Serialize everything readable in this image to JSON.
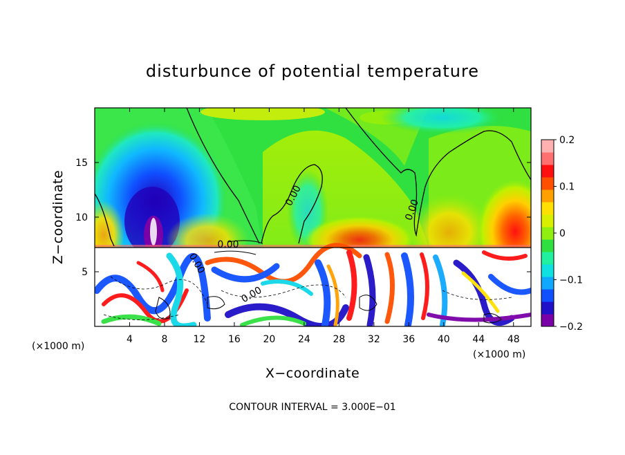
{
  "chart_data": {
    "type": "heatmap",
    "title": "disturbunce of potential temperature",
    "xlabel": "X−coordinate",
    "ylabel": "Z−coordinate",
    "x_unit": "(×1000 m)",
    "x_unit_right": "(×1000 m)",
    "xlim": [
      0,
      50
    ],
    "ylim": [
      0,
      20
    ],
    "x_ticks": [
      4,
      8,
      12,
      16,
      20,
      24,
      28,
      32,
      36,
      40,
      44,
      48
    ],
    "x_tick_labels": [
      "4",
      "8",
      "12",
      "16",
      "20",
      "24",
      "28",
      "32",
      "36",
      "40",
      "44",
      "48"
    ],
    "y_ticks": [
      5,
      10,
      15
    ],
    "y_tick_labels": [
      "5",
      "10",
      "15"
    ],
    "colorbar": {
      "min": -0.2,
      "max": 0.2,
      "ticks": [
        0.2,
        0.1,
        0,
        -0.1,
        -0.2
      ],
      "tick_labels": [
        "0.2",
        "0.1",
        "0",
        "−0.1",
        "−0.2"
      ],
      "colors": [
        "#7a00a8",
        "#2010c8",
        "#1050ff",
        "#10a8ff",
        "#10e0e0",
        "#20f0a0",
        "#30e040",
        "#90ee10",
        "#d8f000",
        "#ffe000",
        "#ffa000",
        "#ff5000",
        "#ff1010",
        "#ff7070",
        "#ffb0b0"
      ]
    },
    "contour_labels": [
      "0.00",
      "0.00",
      "0.00",
      "0.00",
      "0.00"
    ],
    "contour_interval_text": "CONTOUR INTERVAL = 3.000E−01"
  }
}
